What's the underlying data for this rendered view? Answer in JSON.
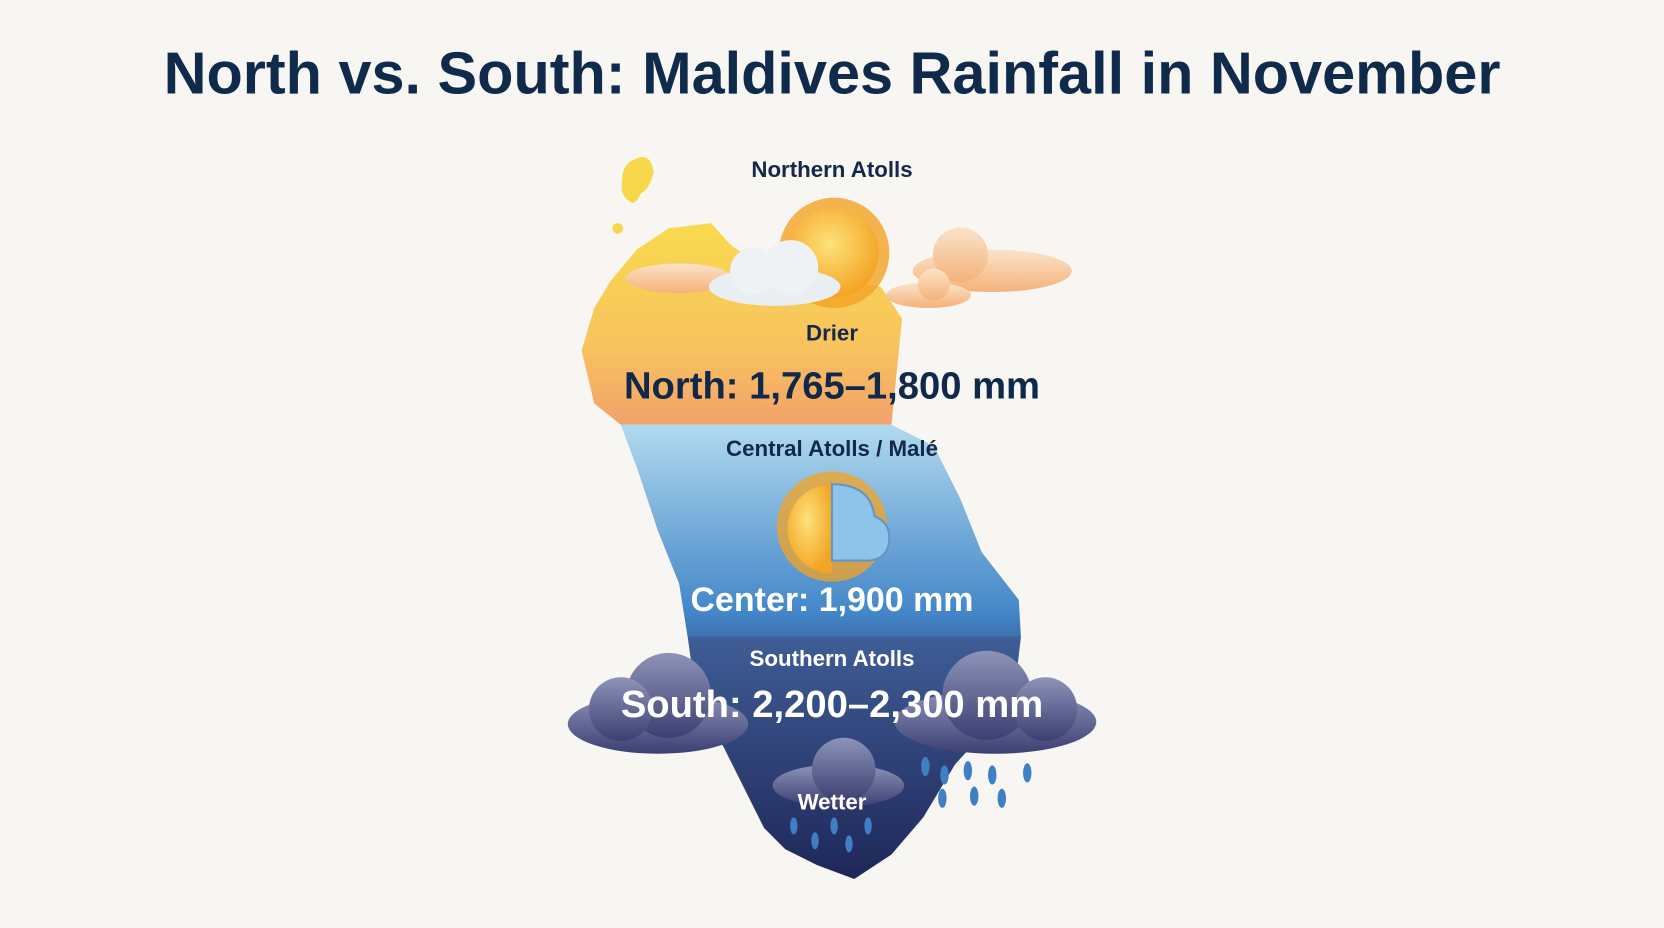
{
  "title": "North vs. South: Maldives Rainfall in November",
  "regions": [
    {
      "name": "Northern Atolls",
      "descriptor": "Drier",
      "rainfall": "North: 1,765–1,800 mm"
    },
    {
      "name": "Central Atolls / Malé",
      "rainfall": "Center: 1,900 mm"
    },
    {
      "name": "Southern Atolls",
      "rainfall": "South: 2,200–2,300 mm",
      "descriptor": "Wetter"
    }
  ]
}
